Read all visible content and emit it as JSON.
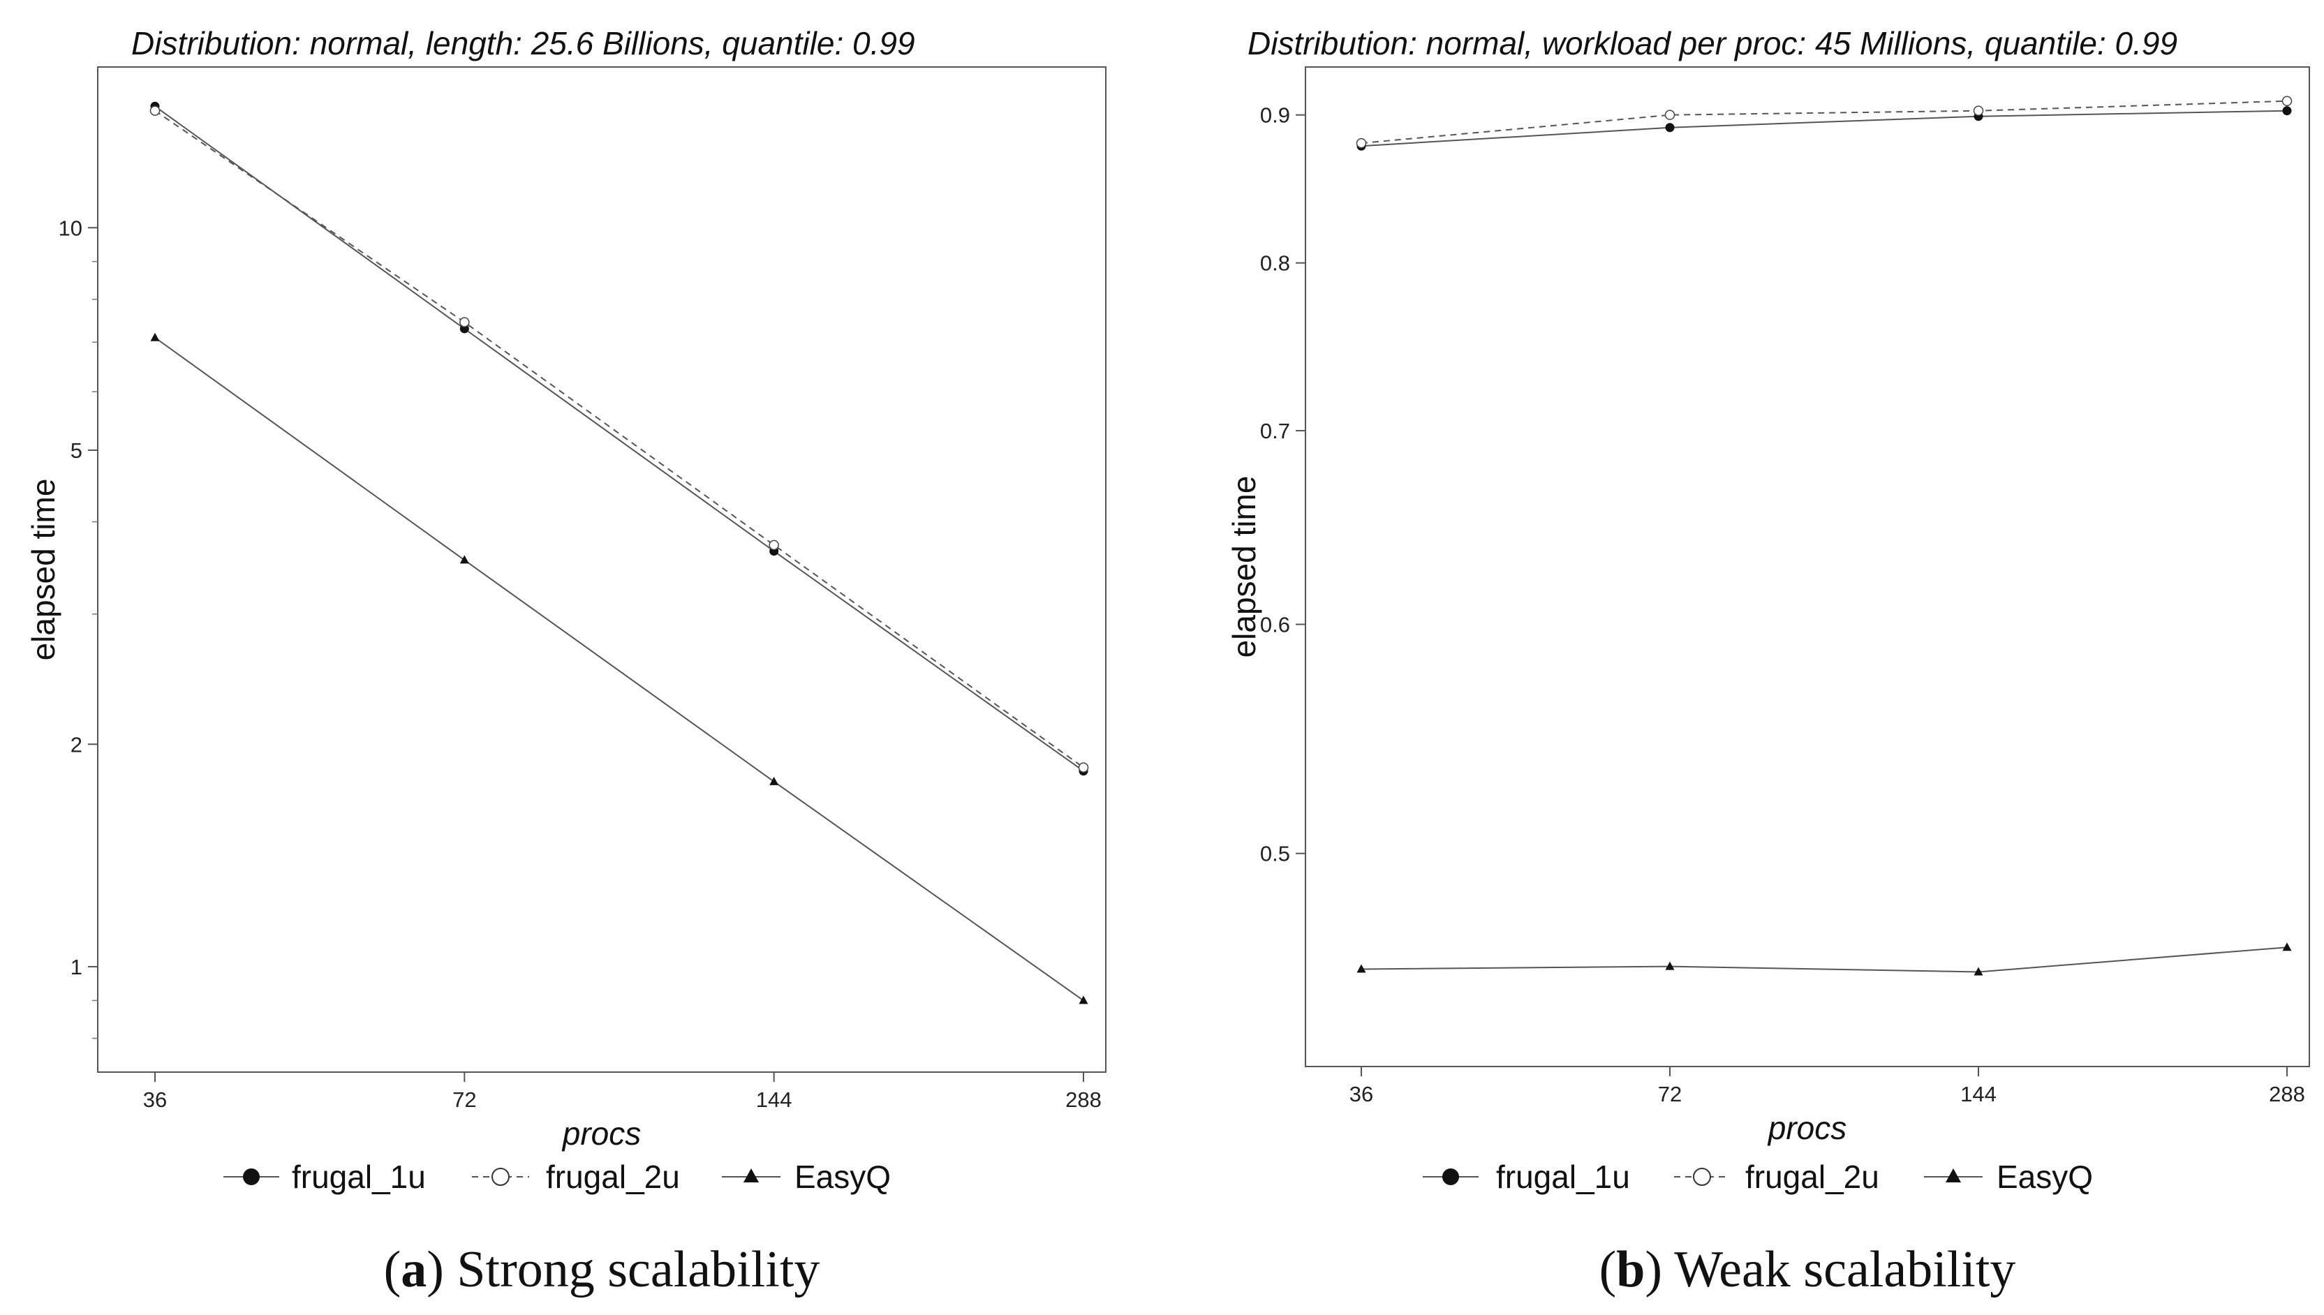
{
  "chart_data": [
    {
      "type": "line",
      "title": "Distribution: normal, length: 25.6 Billions, quantile: 0.99",
      "xlabel": "procs",
      "ylabel": "elapsed time",
      "x": [
        36,
        72,
        144,
        288
      ],
      "x_scale": "log",
      "y_scale": "log",
      "ylim": [
        0.72,
        16.5
      ],
      "y_ticks": [
        {
          "value": 1,
          "label": "1"
        },
        {
          "value": 2,
          "label": "2"
        },
        {
          "value": 5,
          "label": "5"
        },
        {
          "value": 10,
          "label": "10"
        }
      ],
      "x_tick_labels": [
        "36",
        "72",
        "144",
        "288"
      ],
      "series": [
        {
          "name": "frugal_1u",
          "values": [
            14.6,
            7.3,
            3.65,
            1.84
          ],
          "marker": "filled-circle",
          "dash": "solid"
        },
        {
          "name": "frugal_2u",
          "values": [
            14.4,
            7.45,
            3.72,
            1.86
          ],
          "marker": "open-circle",
          "dash": "dashed"
        },
        {
          "name": "EasyQ",
          "values": [
            7.1,
            3.55,
            1.78,
            0.9
          ],
          "marker": "filled-triangle",
          "dash": "solid"
        }
      ],
      "legend_position": "bottom",
      "caption_letter": "a",
      "caption_text": "Strong scalability"
    },
    {
      "type": "line",
      "title": "Distribution: normal, workload per proc: 45 Millions, quantile: 0.99",
      "xlabel": "procs",
      "ylabel": "elapsed time",
      "x": [
        36,
        72,
        144,
        288
      ],
      "x_scale": "log",
      "y_scale": "log",
      "ylim": [
        0.422,
        0.935
      ],
      "y_ticks": [
        {
          "value": 0.5,
          "label": "0.5"
        },
        {
          "value": 0.6,
          "label": "0.6"
        },
        {
          "value": 0.7,
          "label": "0.7"
        },
        {
          "value": 0.8,
          "label": "0.8"
        },
        {
          "value": 0.9,
          "label": "0.9"
        }
      ],
      "x_tick_labels": [
        "36",
        "72",
        "144",
        "288"
      ],
      "series": [
        {
          "name": "frugal_1u",
          "values": [
            0.878,
            0.891,
            0.899,
            0.903
          ],
          "marker": "filled-circle",
          "dash": "solid"
        },
        {
          "name": "frugal_2u",
          "values": [
            0.88,
            0.9,
            0.903,
            0.91
          ],
          "marker": "open-circle",
          "dash": "dashed"
        },
        {
          "name": "EasyQ",
          "values": [
            0.456,
            0.457,
            0.455,
            0.464
          ],
          "marker": "filled-triangle",
          "dash": "solid"
        }
      ],
      "legend_position": "bottom",
      "caption_letter": "b",
      "caption_text": "Weak scalability"
    }
  ]
}
